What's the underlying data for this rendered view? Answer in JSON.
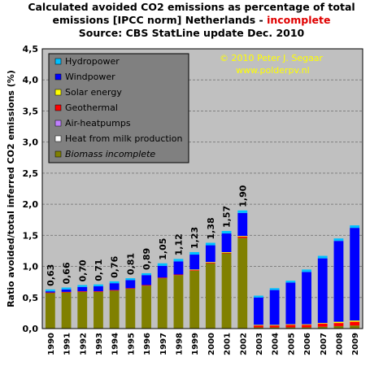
{
  "title": {
    "line1": "Calculated avoided CO2 emissions as percentage of total",
    "line2_prefix": "emissions [IPCC norm] Netherlands - ",
    "line2_highlight": "incomplete",
    "line3": "Source: CBS StatLine update Dec. 2010"
  },
  "credit": {
    "line1": "© 2010 Peter J. Segaar",
    "line2": "www.polderpv.nl"
  },
  "colors": {
    "plot_bg": "#c0c0c0",
    "legend_bg": "#808080",
    "credit": "#ffff00"
  },
  "chart_data": {
    "type": "bar",
    "stacked": true,
    "title": "Calculated avoided CO2 emissions as percentage of total emissions [IPCC norm] Netherlands - incomplete",
    "subtitle": "Source: CBS StatLine update Dec. 2010",
    "xlabel": "",
    "ylabel": "Ratio avoided/total inferred CO2 emissions (%)",
    "ylim": [
      0,
      4.5
    ],
    "yticks": [
      "0,0",
      "0,5",
      "1,0",
      "1,5",
      "2,0",
      "2,5",
      "3,0",
      "3,5",
      "4,0",
      "4,5"
    ],
    "grid": true,
    "legend_position": "top-left",
    "categories": [
      "1990",
      "1991",
      "1992",
      "1993",
      "1994",
      "1995",
      "1996",
      "1997",
      "1998",
      "1999",
      "2000",
      "2001",
      "2002",
      "2003",
      "2004",
      "2005",
      "2006",
      "2007",
      "2008",
      "2009"
    ],
    "series": [
      {
        "name": "Biomass incomplete",
        "color": "#808000",
        "values": [
          0.57,
          0.58,
          0.59,
          0.59,
          0.61,
          0.64,
          0.69,
          0.81,
          0.86,
          0.93,
          1.05,
          1.21,
          1.46,
          0.02,
          0.02,
          0.02,
          0.02,
          0.03,
          0.04,
          0.05
        ]
      },
      {
        "name": "Heat from milk production",
        "color": "#ffffff",
        "values": [
          0,
          0,
          0,
          0,
          0,
          0,
          0,
          0,
          0,
          0,
          0,
          0,
          0,
          0,
          0,
          0,
          0,
          0,
          0,
          0
        ]
      },
      {
        "name": "Air-heatpumps",
        "color": "#c080ff",
        "values": [
          0,
          0,
          0,
          0,
          0,
          0,
          0,
          0,
          0,
          0,
          0,
          0,
          0,
          0,
          0,
          0,
          0,
          0,
          0,
          0
        ]
      },
      {
        "name": "Geothermal",
        "color": "#ff0000",
        "values": [
          0.01,
          0.01,
          0.01,
          0.01,
          0.01,
          0.01,
          0.01,
          0.01,
          0.01,
          0.01,
          0.01,
          0.01,
          0.02,
          0.03,
          0.03,
          0.04,
          0.04,
          0.05,
          0.05,
          0.06
        ]
      },
      {
        "name": "Solar energy",
        "color": "#ffff00",
        "values": [
          0,
          0,
          0,
          0,
          0,
          0,
          0,
          0,
          0,
          0.01,
          0.01,
          0.01,
          0.01,
          0.01,
          0.01,
          0.01,
          0.01,
          0.01,
          0.02,
          0.02
        ]
      },
      {
        "name": "Windpower",
        "color": "#0000ff",
        "values": [
          0.02,
          0.04,
          0.07,
          0.08,
          0.11,
          0.13,
          0.16,
          0.19,
          0.21,
          0.24,
          0.27,
          0.3,
          0.37,
          0.44,
          0.56,
          0.67,
          0.84,
          1.04,
          1.3,
          1.49
        ]
      },
      {
        "name": "Hydropower",
        "color": "#00c0ff",
        "values": [
          0.03,
          0.03,
          0.03,
          0.03,
          0.03,
          0.03,
          0.03,
          0.04,
          0.04,
          0.04,
          0.04,
          0.04,
          0.04,
          0.03,
          0.03,
          0.03,
          0.04,
          0.04,
          0.04,
          0.04
        ]
      }
    ],
    "data_labels": [
      "0,63",
      "0,66",
      "0,70",
      "0,71",
      "0,76",
      "0,81",
      "0,89",
      "1,05",
      "1,12",
      "1,23",
      "1,38",
      "1,57",
      "1,90",
      "",
      "",
      "",
      "",
      "",
      "",
      ""
    ]
  }
}
